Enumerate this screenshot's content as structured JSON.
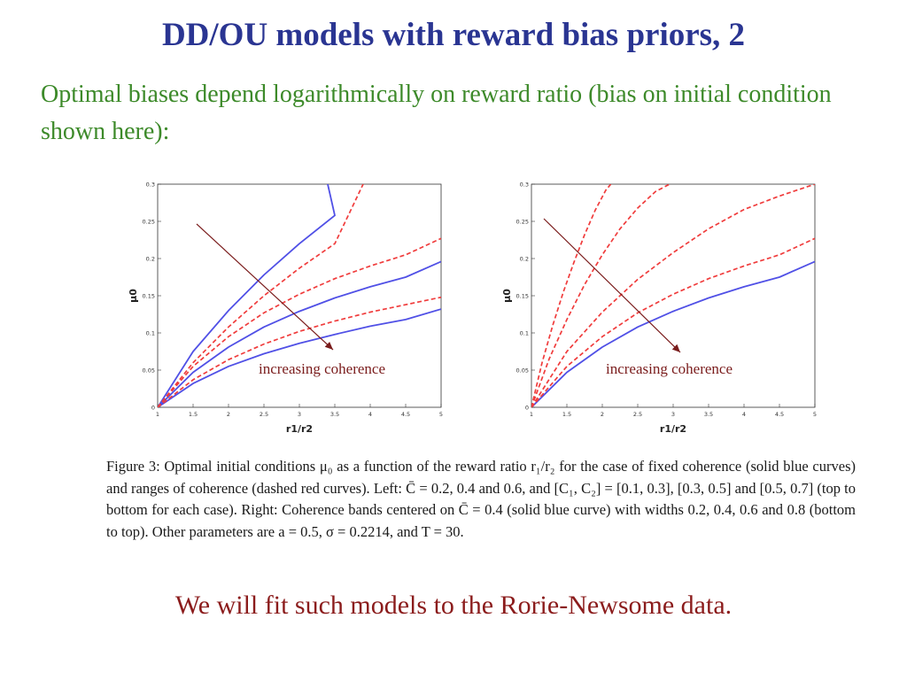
{
  "slide": {
    "title": "DD/OU models with reward bias priors, 2",
    "subtitle": "Optimal biases depend logarithmically on reward ratio (bias on initial condition shown here):",
    "bottom_note": "We will fit such models to the Rorie-Newsome data."
  },
  "caption": {
    "text": "Figure 3: Optimal initial conditions μ₀ as a function of the reward ratio r₁/r₂ for the case of fixed coherence (solid blue curves) and ranges of coherence (dashed red curves). Left: C̄ = 0.2, 0.4 and 0.6, and [C₁, C₂] = [0.1, 0.3], [0.3, 0.5] and [0.5, 0.7] (top to bottom for each case). Right: Coherence bands centered on C̄ = 0.4 (solid blue curve) with widths 0.2, 0.4, 0.6 and 0.8 (bottom to top). Other parameters are a = 0.5, σ = 0.2214, and T = 30."
  },
  "colors": {
    "title": "#2a3592",
    "subtitle": "#3d8a2a",
    "note": "#8b1c1c",
    "solid_curve": "#5050e6",
    "dashed_curve": "#f03c3c",
    "arrow": "#7a1c1c"
  },
  "chart_data": [
    {
      "type": "line",
      "panel": "left",
      "xlabel": "r1/r2",
      "ylabel": "μ0",
      "xlim": [
        1,
        5
      ],
      "ylim": [
        0,
        0.3
      ],
      "xticks": [
        "1",
        "1.5",
        "2",
        "2.5",
        "3",
        "3.5",
        "4",
        "4.5",
        "5"
      ],
      "yticks": [
        "0",
        "0.05",
        "0.1",
        "0.15",
        "0.2",
        "0.25",
        "0.3"
      ],
      "annotation": "increasing coherence",
      "series": [
        {
          "style": "solid",
          "x": [
            1,
            1.5,
            2,
            2.5,
            3,
            3.5,
            3.4
          ],
          "y": [
            0,
            0.075,
            0.13,
            0.178,
            0.22,
            0.258,
            0.3
          ]
        },
        {
          "style": "solid",
          "x": [
            1,
            1.5,
            2,
            2.5,
            3,
            3.5,
            4,
            4.5,
            5
          ],
          "y": [
            0,
            0.047,
            0.081,
            0.108,
            0.129,
            0.147,
            0.162,
            0.175,
            0.196
          ]
        },
        {
          "style": "solid",
          "x": [
            1,
            1.5,
            2,
            2.5,
            3,
            3.5,
            4,
            4.5,
            5
          ],
          "y": [
            0,
            0.032,
            0.055,
            0.072,
            0.086,
            0.098,
            0.109,
            0.118,
            0.132
          ]
        },
        {
          "style": "dashed",
          "x": [
            1,
            1.5,
            2,
            2.5,
            3,
            3.5,
            3.9
          ],
          "y": [
            0,
            0.06,
            0.108,
            0.15,
            0.187,
            0.22,
            0.3
          ]
        },
        {
          "style": "dashed",
          "x": [
            1,
            1.5,
            2,
            2.5,
            3,
            3.5,
            4,
            4.5,
            5
          ],
          "y": [
            0,
            0.055,
            0.095,
            0.127,
            0.152,
            0.173,
            0.19,
            0.205,
            0.227
          ]
        },
        {
          "style": "dashed",
          "x": [
            1,
            1.5,
            2,
            2.5,
            3,
            3.5,
            4,
            4.5,
            5
          ],
          "y": [
            0,
            0.037,
            0.064,
            0.085,
            0.102,
            0.116,
            0.128,
            0.138,
            0.148
          ]
        }
      ]
    },
    {
      "type": "line",
      "panel": "right",
      "xlabel": "r1/r2",
      "ylabel": "μ0",
      "xlim": [
        1,
        5
      ],
      "ylim": [
        0,
        0.3
      ],
      "xticks": [
        "1",
        "1.5",
        "2",
        "2.5",
        "3",
        "3.5",
        "4",
        "4.5",
        "5"
      ],
      "yticks": [
        "0",
        "0.05",
        "0.1",
        "0.15",
        "0.2",
        "0.25",
        "0.3"
      ],
      "annotation": "increasing coherence",
      "series": [
        {
          "style": "solid",
          "x": [
            1,
            1.5,
            2,
            2.5,
            3,
            3.5,
            4,
            4.5,
            5
          ],
          "y": [
            0,
            0.047,
            0.081,
            0.108,
            0.129,
            0.147,
            0.162,
            0.175,
            0.196
          ]
        },
        {
          "style": "dashed",
          "x": [
            1,
            1.5,
            2,
            2.5,
            3,
            3.5,
            4,
            4.5,
            5
          ],
          "y": [
            0,
            0.055,
            0.095,
            0.127,
            0.152,
            0.173,
            0.19,
            0.205,
            0.227
          ]
        },
        {
          "style": "dashed",
          "x": [
            1,
            1.5,
            2,
            2.5,
            3,
            3.5,
            4,
            4.5,
            5
          ],
          "y": [
            0,
            0.075,
            0.128,
            0.172,
            0.208,
            0.24,
            0.266,
            0.284,
            0.3
          ]
        },
        {
          "style": "dashed",
          "x": [
            1,
            1.25,
            1.5,
            1.75,
            2,
            2.25,
            2.5,
            2.75,
            2.95
          ],
          "y": [
            0,
            0.065,
            0.118,
            0.165,
            0.205,
            0.24,
            0.268,
            0.29,
            0.3
          ]
        },
        {
          "style": "dashed",
          "x": [
            1,
            1.15,
            1.3,
            1.45,
            1.6,
            1.75,
            1.9,
            2.05,
            2.12
          ],
          "y": [
            0,
            0.06,
            0.11,
            0.155,
            0.195,
            0.232,
            0.265,
            0.292,
            0.3
          ]
        }
      ]
    }
  ]
}
